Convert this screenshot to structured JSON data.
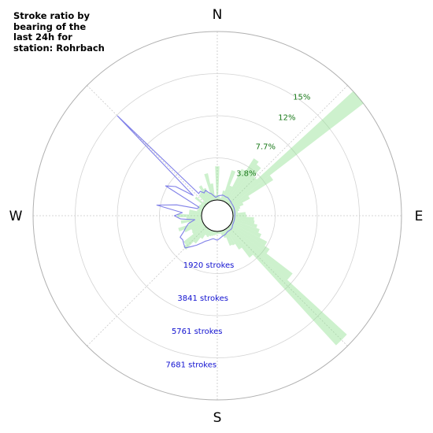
{
  "title": "Stroke ratio by bearing of the last 24h for station: Rohrbach",
  "chart_data": {
    "type": "polar",
    "title": "Stroke ratio by bearing of the last 24h for station: Rohrbach",
    "compass": [
      "N",
      "E",
      "S",
      "W"
    ],
    "ratio_ticks": [
      "3.8%",
      "7.7%",
      "12%",
      "15%"
    ],
    "ratio_tick_values": [
      3.8,
      7.7,
      12,
      15
    ],
    "stroke_ticks": [
      "1920 strokes",
      "3841 strokes",
      "5761 strokes",
      "7681 strokes"
    ],
    "stroke_tick_values": [
      1920,
      3841,
      5761,
      7681
    ],
    "bin_width_deg": 5,
    "ratio_series": {
      "color": "#90e090",
      "bearings": [
        0,
        5,
        10,
        15,
        20,
        25,
        30,
        35,
        40,
        45,
        50,
        55,
        60,
        65,
        70,
        75,
        80,
        85,
        90,
        95,
        100,
        105,
        110,
        115,
        120,
        125,
        130,
        135,
        140,
        145,
        150,
        155,
        160,
        165,
        170,
        175,
        180,
        185,
        190,
        195,
        200,
        205,
        210,
        215,
        220,
        225,
        230,
        235,
        240,
        245,
        250,
        255,
        260,
        265,
        270,
        275,
        280,
        285,
        290,
        295,
        300,
        305,
        310,
        315,
        320,
        325,
        330,
        335,
        340,
        345,
        350,
        355
      ],
      "values": [
        4.0,
        0.5,
        0.3,
        1.2,
        3.8,
        2.0,
        4.4,
        6.2,
        5.8,
        4.5,
        20.0,
        6.0,
        2.5,
        1.5,
        1.0,
        0.8,
        0.6,
        1.5,
        1.6,
        2.5,
        2.6,
        3.0,
        3.4,
        3.8,
        4.8,
        5.5,
        9.4,
        19.0,
        4.4,
        2.9,
        2.1,
        2.0,
        0.9,
        0.6,
        0.3,
        0.3,
        0.3,
        0.4,
        0.5,
        0.6,
        0.7,
        0.9,
        0.8,
        1.4,
        2.3,
        3.6,
        3.2,
        1.7,
        1.6,
        2.4,
        3.0,
        1.6,
        2.5,
        1.8,
        2.9,
        1.5,
        1.5,
        0.6,
        0.5,
        0.7,
        0.6,
        0.5,
        1.5,
        0.4,
        1.4,
        1.5,
        2.2,
        1.7,
        1.0,
        3.3,
        2.0,
        0.6
      ]
    },
    "strokes_series": {
      "color": "#8080e8",
      "bearings": [
        0,
        5,
        10,
        15,
        20,
        25,
        30,
        35,
        40,
        45,
        50,
        55,
        60,
        65,
        70,
        75,
        80,
        85,
        90,
        95,
        100,
        105,
        110,
        115,
        120,
        125,
        130,
        135,
        140,
        145,
        150,
        155,
        160,
        165,
        170,
        175,
        180,
        185,
        190,
        195,
        200,
        205,
        210,
        215,
        220,
        225,
        230,
        235,
        240,
        245,
        250,
        255,
        260,
        265,
        270,
        275,
        280,
        285,
        290,
        295,
        300,
        305,
        310,
        315,
        320,
        325,
        330,
        335,
        340,
        345,
        350,
        355
      ],
      "values": [
        200,
        260,
        280,
        320,
        300,
        280,
        300,
        260,
        230,
        200,
        180,
        170,
        160,
        150,
        140,
        130,
        120,
        110,
        100,
        100,
        100,
        100,
        105,
        110,
        120,
        150,
        200,
        200,
        190,
        180,
        200,
        250,
        280,
        300,
        350,
        420,
        500,
        460,
        430,
        500,
        600,
        700,
        900,
        1150,
        1400,
        1700,
        1600,
        1500,
        1550,
        1200,
        1000,
        800,
        400,
        1200,
        1550,
        1100,
        2600,
        1500,
        300,
        250,
        2500,
        2000,
        900,
        7150,
        750,
        800,
        600,
        700,
        500,
        400,
        250,
        150
      ]
    }
  }
}
